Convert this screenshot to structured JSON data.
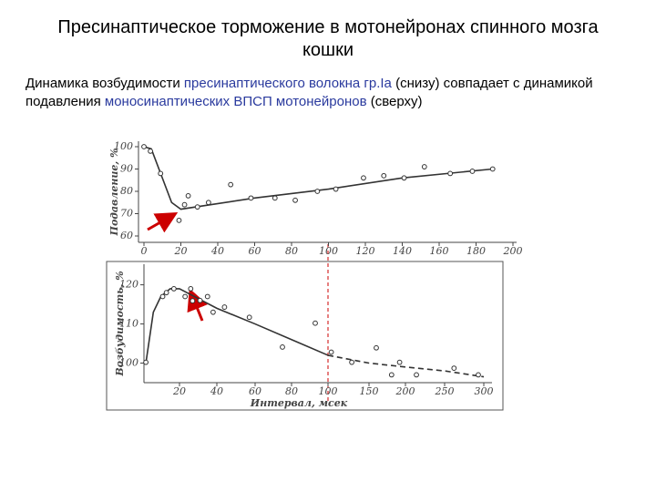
{
  "title": "Пресинаптическое торможение в мотонейронах спинного мозга кошки",
  "description": [
    "Динамика возбудимости ",
    "пресинаптического волокна гр.Ia",
    " (снизу) совпадает с динамикой подавления ",
    "моносинаптических ВПСП мотонейронов",
    " (сверху)"
  ],
  "chart_data": [
    {
      "type": "scatter",
      "ylabel": "Подавление, %",
      "color": "#333333",
      "xlim": [
        0,
        200
      ],
      "ylim": [
        60,
        100
      ],
      "xticks": [
        0,
        20,
        40,
        60,
        80,
        100,
        120,
        140,
        160,
        180,
        200
      ],
      "yticks": [
        60,
        70,
        80,
        90,
        100
      ],
      "points": {
        "x": [
          0,
          3.5,
          9,
          19,
          22,
          24,
          29,
          35,
          47,
          58,
          71,
          82,
          94,
          104,
          119,
          130,
          141,
          152,
          166,
          178,
          189
        ],
        "y": [
          100,
          98,
          88,
          67,
          74,
          78,
          73,
          75,
          83,
          77,
          77,
          76,
          80,
          81,
          86,
          87,
          86,
          91,
          88,
          89,
          90
        ]
      },
      "lines": [
        {
          "style": "solid",
          "x": [
            0,
            4,
            15,
            20,
            60,
            100,
            140,
            189
          ],
          "y": [
            100,
            99,
            75,
            72,
            77,
            81,
            86,
            90
          ]
        }
      ]
    },
    {
      "type": "scatter",
      "ylabel": "Возбудимость, %",
      "xlabel": "Интервал, мсек",
      "color": "#333333",
      "ylim": [
        95,
        122
      ],
      "xticks": [
        20,
        40,
        60,
        80,
        100,
        150,
        200,
        250,
        300
      ],
      "yticks": [
        100,
        110,
        120
      ],
      "points": {
        "x": [
          2,
          11,
          13,
          17,
          23,
          26,
          27,
          31,
          35,
          38,
          44,
          57,
          75,
          93,
          104,
          129,
          160,
          181,
          192,
          214,
          262,
          293
        ],
        "y": [
          100.2,
          117,
          118,
          119,
          117,
          119,
          115.9,
          116,
          117,
          113,
          114.3,
          111.7,
          104.1,
          110.2,
          102.8,
          100.2,
          103.9,
          97,
          100.2,
          97,
          98.7,
          97
        ]
      },
      "lines": [
        {
          "style": "solid",
          "x": [
            2,
            6,
            10,
            15,
            20,
            40,
            60,
            80,
            100
          ],
          "y": [
            100,
            113,
            117,
            119,
            119,
            114,
            110,
            106,
            102
          ]
        },
        {
          "style": "dashed",
          "x": [
            100,
            150,
            200,
            250,
            300
          ],
          "y": [
            102,
            100,
            99,
            98,
            96.5
          ]
        }
      ]
    }
  ]
}
